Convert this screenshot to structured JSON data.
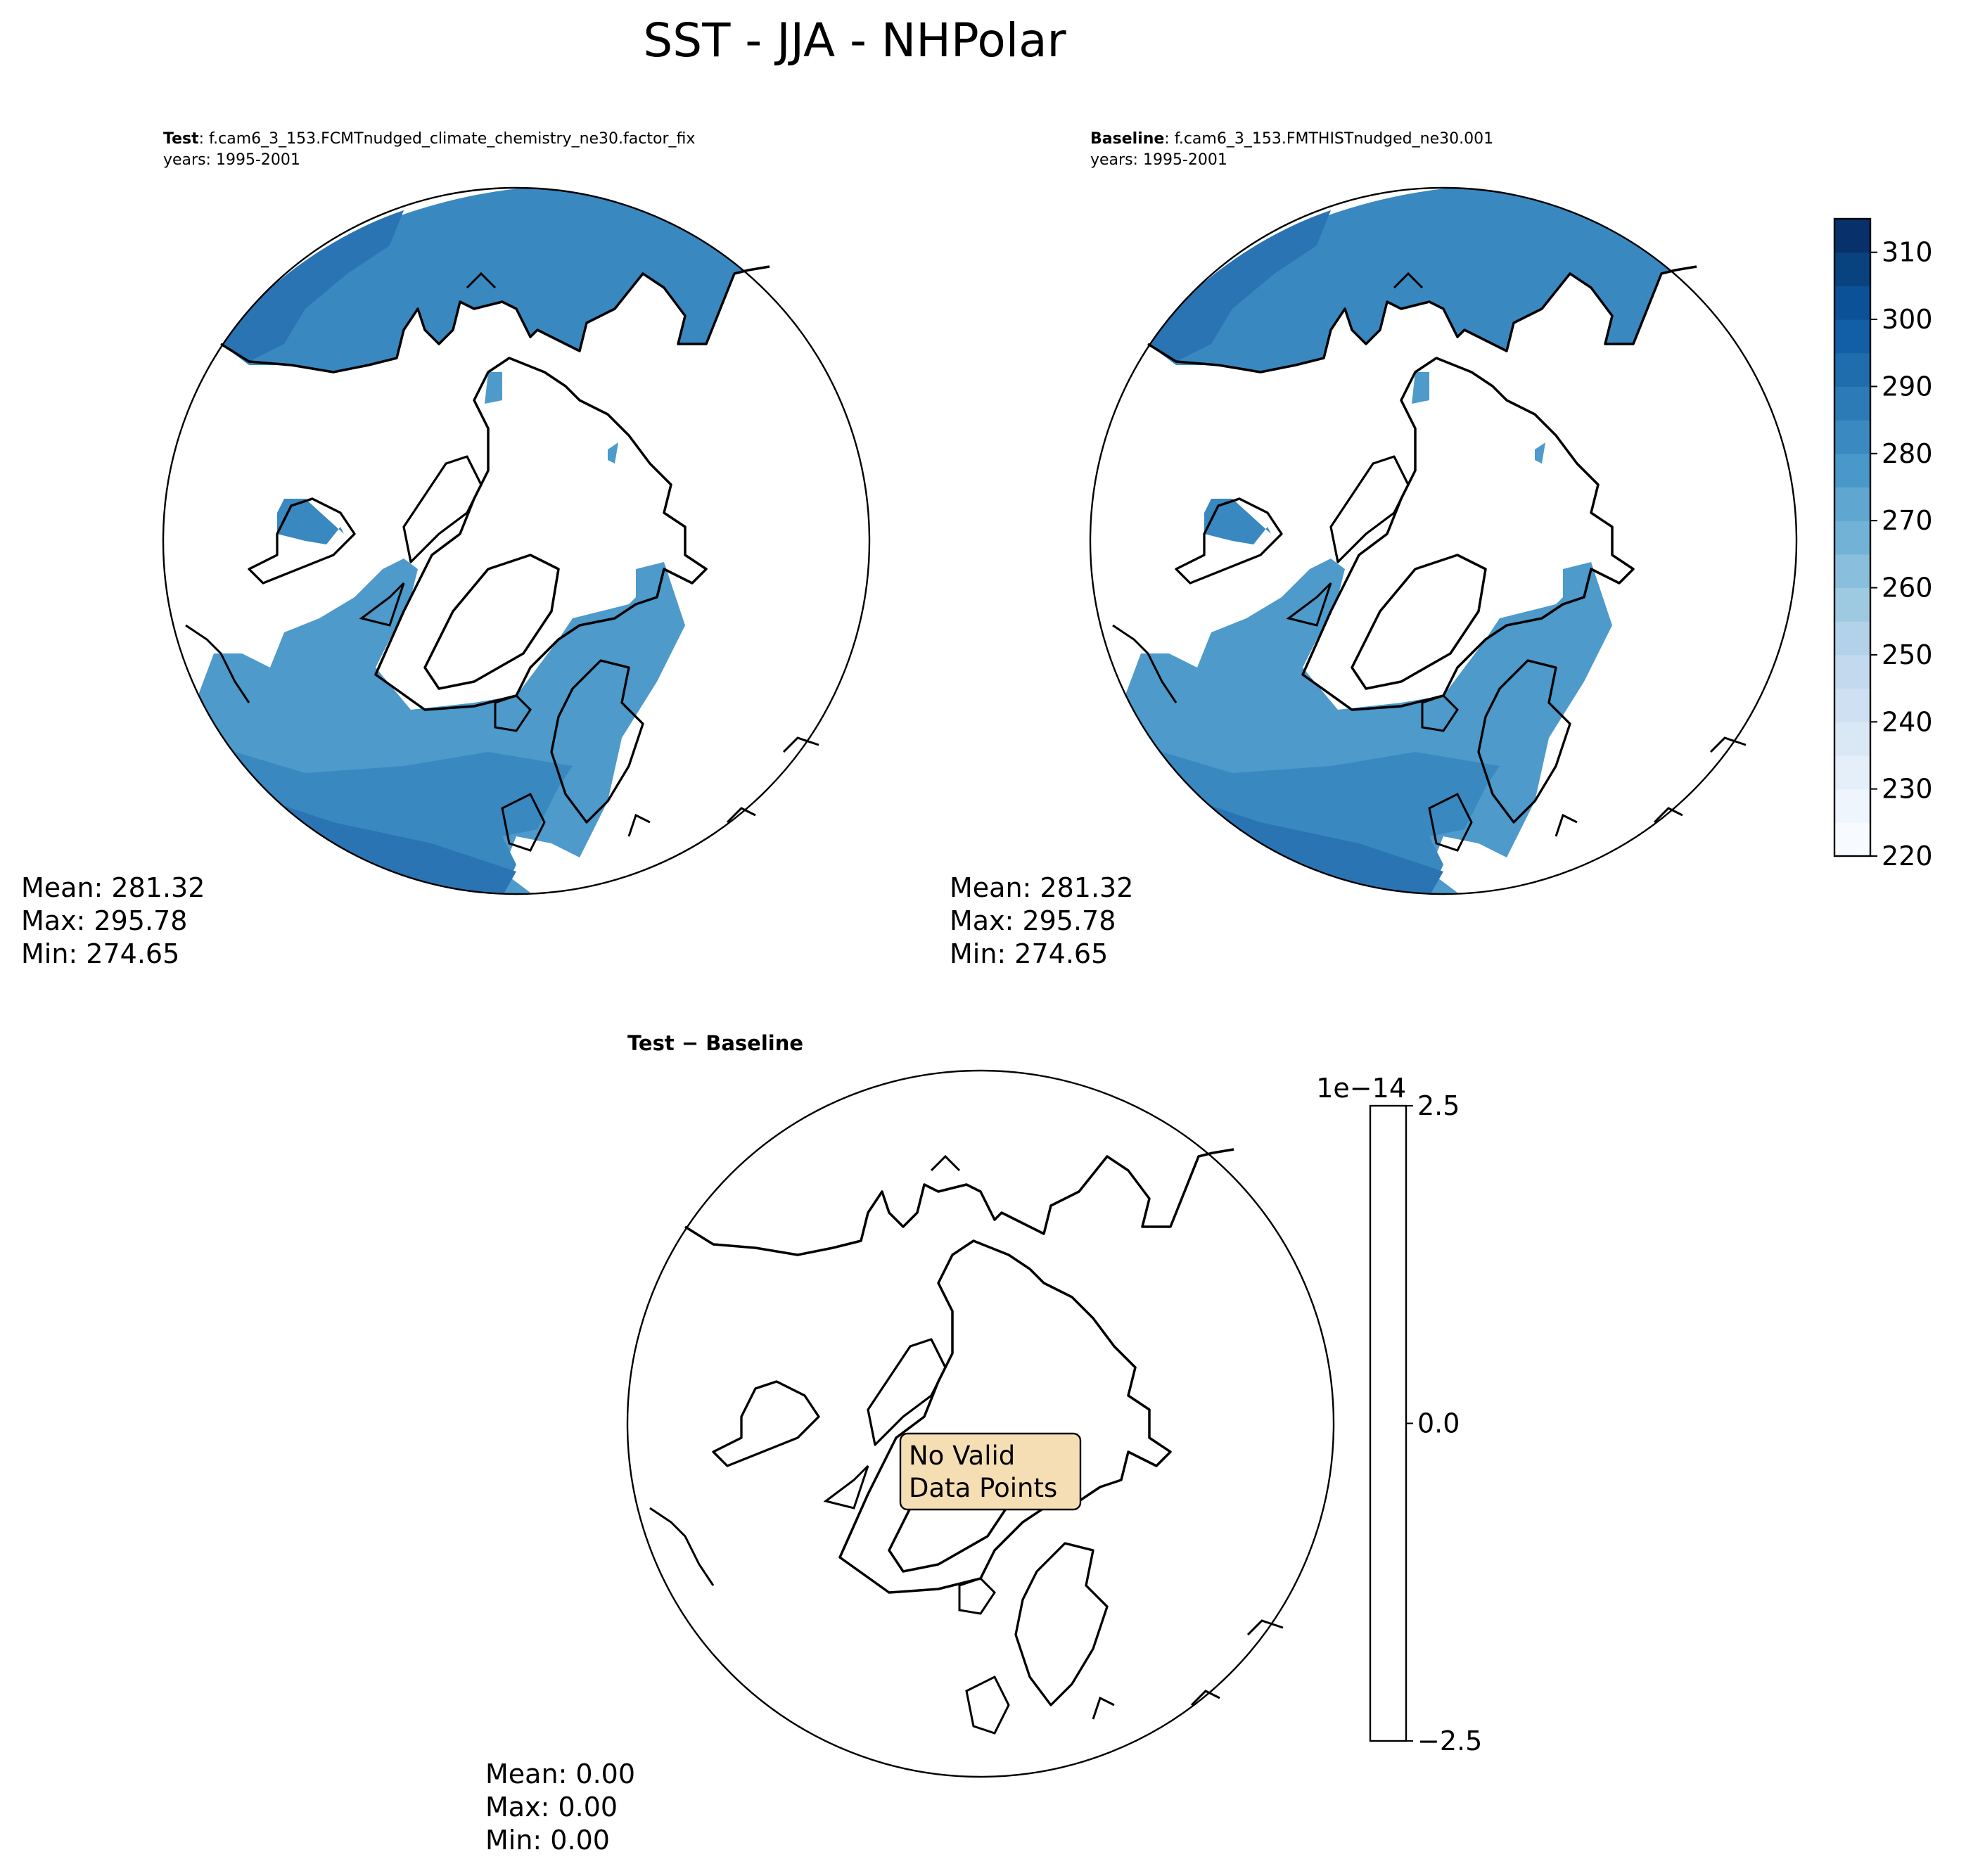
{
  "figure": {
    "title": "SST - JJA - NHPolar"
  },
  "panels": {
    "test": {
      "title_bold": "Test",
      "title_rest": ": f.cam6_3_153.FCMTnudged_climate_chemistry_ne30.factor_fix",
      "years": "years: 1995-2001",
      "stats": {
        "mean": "Mean: 281.32",
        "max": "Max: 295.78",
        "min": "Min: 274.65"
      }
    },
    "baseline": {
      "title_bold": "Baseline",
      "title_rest": ": f.cam6_3_153.FMTHISTnudged_ne30.001",
      "years": "years: 1995-2001",
      "stats": {
        "mean": "Mean: 281.32",
        "max": "Max: 295.78",
        "min": "Min: 274.65"
      }
    },
    "difference": {
      "title": "Test − Baseline",
      "annotation_line1": "No Valid",
      "annotation_line2": "Data Points",
      "annotation_fill": "#f5deb3",
      "stats": {
        "mean": "Mean:  0.00",
        "max": "Max:  0.00",
        "min": "Min:  0.00"
      }
    }
  },
  "colorbar_main": {
    "colormap": "Blues",
    "range": [
      220,
      315
    ],
    "tick_labels": [
      "220",
      "230",
      "240",
      "250",
      "260",
      "270",
      "280",
      "290",
      "300",
      "310"
    ],
    "tick_values": [
      220,
      230,
      240,
      250,
      260,
      270,
      280,
      290,
      300,
      310
    ],
    "colors": [
      "#f7fbff",
      "#eef5fc",
      "#e4eff9",
      "#dae8f6",
      "#cee0f2",
      "#c2d9ee",
      "#b1d2e8",
      "#9ecae1",
      "#89bedc",
      "#72b2d7",
      "#5fa6d1",
      "#4a98c9",
      "#3a89c1",
      "#2c7bb6",
      "#1f6dac",
      "#135fa7",
      "#0a5198",
      "#08437f",
      "#08306b"
    ]
  },
  "colorbar_diff": {
    "offset_label": "1e−14",
    "tick_labels": [
      "2.5",
      "0.0",
      "−2.5"
    ],
    "tick_values": [
      2.5,
      0.0,
      -2.5
    ]
  },
  "map_colors": {
    "ocean_dark": "#2b74b4",
    "ocean_mid": "#3a88c0",
    "ocean_light": "#4d9acb",
    "coastline": "#000000"
  }
}
